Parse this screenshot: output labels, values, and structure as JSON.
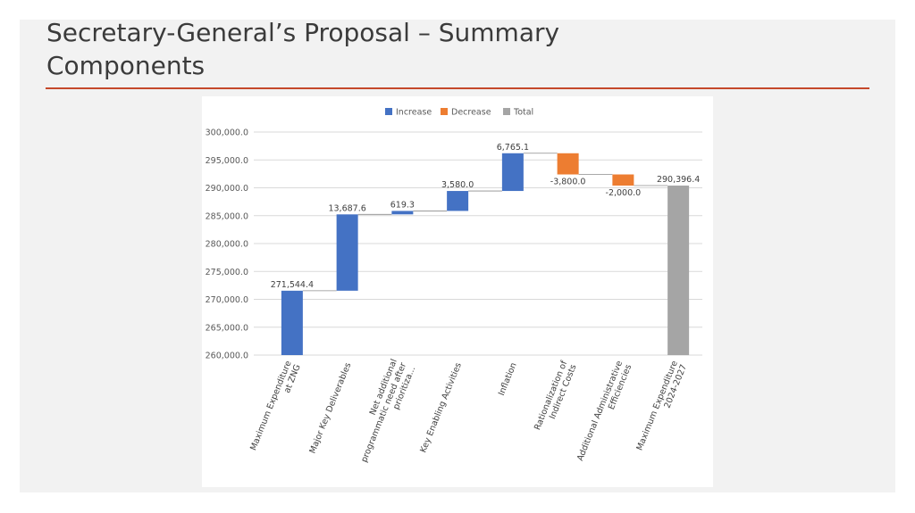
{
  "slide": {
    "title_line1": "Secretary-General’s Proposal – Summary",
    "title_line2": "Components"
  },
  "colors": {
    "increase": "#4472c4",
    "decrease": "#ed7d31",
    "total": "#a5a5a5",
    "accent_rule": "#c5492b",
    "title_text": "#3b3b3b"
  },
  "chart_data": {
    "type": "bar",
    "subtype": "waterfall",
    "title": "",
    "xlabel": "",
    "ylabel": "",
    "ylim": [
      260000,
      300000
    ],
    "yticks": [
      260000,
      265000,
      270000,
      275000,
      280000,
      285000,
      290000,
      295000,
      300000
    ],
    "ytick_labels": [
      "260,000.0",
      "265,000.0",
      "270,000.0",
      "275,000.0",
      "280,000.0",
      "285,000.0",
      "290,000.0",
      "295,000.0",
      "300,000.0"
    ],
    "grid": true,
    "legend": {
      "placement": "top",
      "entries": [
        {
          "label": "Increase",
          "key": "increase"
        },
        {
          "label": "Decrease",
          "key": "decrease"
        },
        {
          "label": "Total",
          "key": "total"
        }
      ]
    },
    "categories": [
      [
        "Maximum Expenditure",
        "at ZNG"
      ],
      [
        "Major Key Deliverables"
      ],
      [
        "Net additional",
        "programmatic need after",
        "prioritiza..."
      ],
      [
        "Key Enabling Activities"
      ],
      [
        "Inflation"
      ],
      [
        "Rationalization of",
        "Indirect Costs"
      ],
      [
        "Additional Administrative",
        "Efficiencies"
      ],
      [
        "Maximum Expenditure",
        "2024-2027"
      ]
    ],
    "values": [
      271544.4,
      13687.6,
      619.3,
      3580.0,
      6765.1,
      -3800.0,
      -2000.0,
      290396.4
    ],
    "kinds": [
      "increase",
      "increase",
      "increase",
      "increase",
      "increase",
      "decrease",
      "decrease",
      "total"
    ],
    "data_labels": [
      "271,544.4",
      "13,687.6",
      "619.3",
      "3,580.0",
      "6,765.1",
      "-3,800.0",
      "-2,000.0",
      "290,396.4"
    ]
  }
}
